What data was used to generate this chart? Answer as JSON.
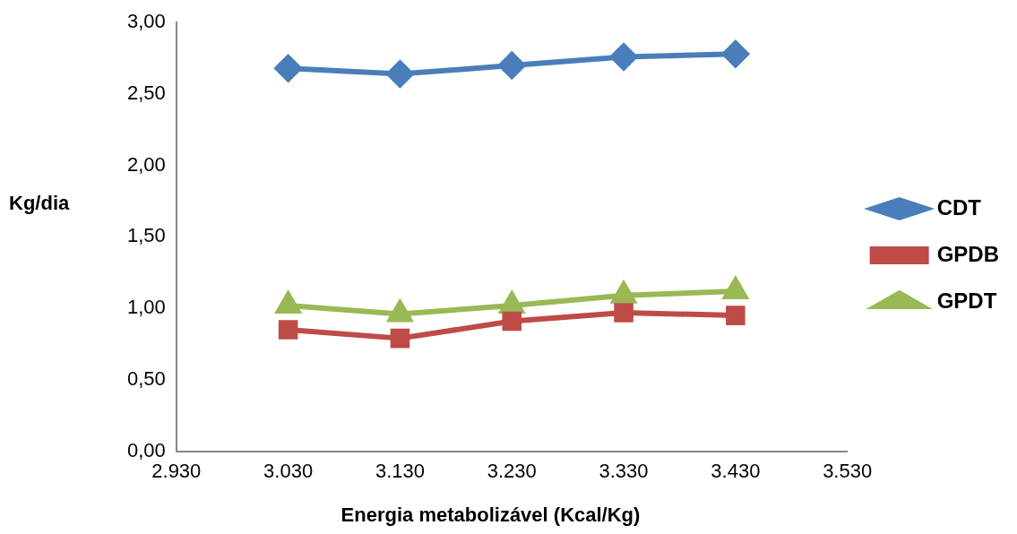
{
  "chart_data": {
    "type": "line",
    "xlabel": "Energia metabolizável (Kcal/Kg)",
    "ylabel": "Kg/dia",
    "x": [
      3030,
      3130,
      3230,
      3330,
      3430
    ],
    "series": [
      {
        "name": "CDT",
        "color": "#4a7ebb",
        "marker": "diamond",
        "values": [
          2.68,
          2.64,
          2.7,
          2.76,
          2.78
        ]
      },
      {
        "name": "GPDB",
        "color": "#be4b48",
        "marker": "square",
        "values": [
          0.85,
          0.79,
          0.91,
          0.97,
          0.95
        ]
      },
      {
        "name": "GPDT",
        "color": "#98b954",
        "marker": "triangle",
        "values": [
          1.02,
          0.96,
          1.02,
          1.09,
          1.12
        ]
      }
    ],
    "xlim": [
      2930,
      3530
    ],
    "xticks": [
      {
        "value": 2930,
        "label": "2.930"
      },
      {
        "value": 3030,
        "label": "3.030"
      },
      {
        "value": 3130,
        "label": "3.130"
      },
      {
        "value": 3230,
        "label": "3.230"
      },
      {
        "value": 3330,
        "label": "3.330"
      },
      {
        "value": 3430,
        "label": "3.430"
      },
      {
        "value": 3530,
        "label": "3.530"
      }
    ],
    "ylim": [
      0,
      3
    ],
    "yticks": [
      {
        "value": 0,
        "label": "0,00"
      },
      {
        "value": 0.5,
        "label": "0,50"
      },
      {
        "value": 1,
        "label": "1,00"
      },
      {
        "value": 1.5,
        "label": "1,50"
      },
      {
        "value": 2,
        "label": "2,00"
      },
      {
        "value": 2.5,
        "label": "2,50"
      },
      {
        "value": 3,
        "label": "3,00"
      }
    ],
    "grid": false,
    "legend": "right",
    "line_style": "solid"
  }
}
